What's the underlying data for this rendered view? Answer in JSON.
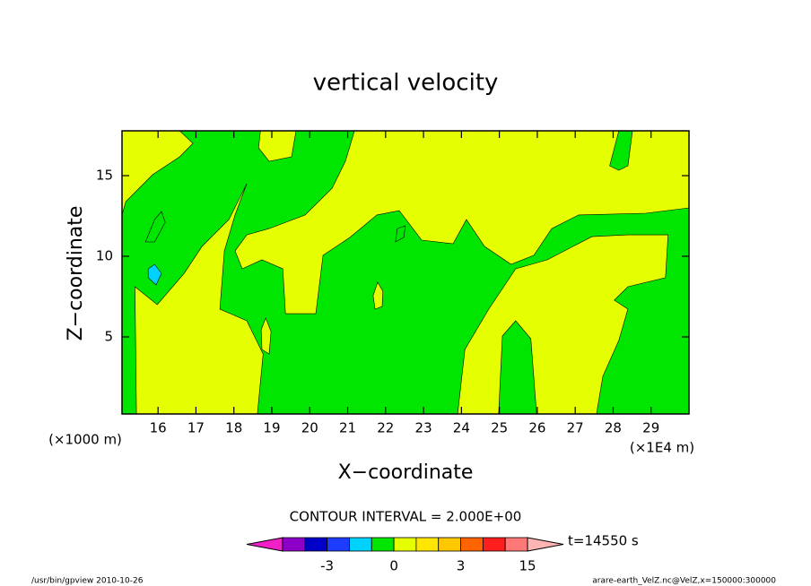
{
  "chart_data": {
    "type": "contour",
    "title": "vertical velocity",
    "x_label": "X−coordinate",
    "y_label": "Z−coordinate",
    "x_unit_left": "(×1000 m)",
    "x_unit_right": "(×1E4 m)",
    "xlim": [
      15.05,
      30
    ],
    "ylim": [
      0.22,
      17.78
    ],
    "xticks": [
      16,
      17,
      18,
      19,
      20,
      21,
      22,
      23,
      24,
      25,
      26,
      27,
      28,
      29
    ],
    "yticks": [
      5,
      10,
      15
    ],
    "contour_note": "CONTOUR INTERVAL = 2.000E+00",
    "time_label": "t=14550 s",
    "footer_left": "/usr/bin/gpview   2010-10-26",
    "footer_right": "arare-earth_VelZ.nc@VelZ,x=150000:300000",
    "levels": [
      -11,
      -7,
      -3,
      -2,
      -1,
      0,
      1,
      2,
      3,
      7,
      11,
      15
    ],
    "colorbar_ticks": [
      -3,
      0,
      3,
      15
    ],
    "colors": [
      "#f020c8",
      "#8c00c8",
      "#0000c8",
      "#1e3cff",
      "#00d2ff",
      "#00e600",
      "#e6ff00",
      "#ffe600",
      "#ffc800",
      "#ff6400",
      "#ff1e1e",
      "#ff7878",
      "#ffb4b4"
    ],
    "background_range": [
      -1,
      0
    ],
    "regions": [
      {
        "range": [
          0,
          1
        ],
        "x": [
          15.05,
          16.57,
          16.92,
          16.57,
          15.86,
          15.15,
          15.05
        ],
        "z": [
          17.78,
          17.78,
          17,
          16.17,
          15.06,
          13.39,
          12.56
        ]
      },
      {
        "range": [
          0,
          1
        ],
        "x": [
          15.43,
          15.39,
          15.98,
          16.69,
          17.16,
          17.87,
          18.34,
          18.03,
          17.75,
          17.63,
          18.34,
          18.77,
          18.62
        ],
        "z": [
          0.22,
          8.11,
          7,
          8.94,
          10.61,
          12.28,
          14.5,
          12.56,
          10.33,
          6.72,
          6,
          3.94,
          0.22
        ]
      },
      {
        "range": [
          0,
          1
        ],
        "x": [
          18.7,
          19.64,
          19.52,
          18.93,
          18.65
        ],
        "z": [
          17.78,
          17.78,
          16.17,
          15.89,
          16.72
        ]
      },
      {
        "range": [
          0,
          1
        ],
        "x": [
          21.18,
          30,
          30,
          28.86,
          27.09,
          26.38,
          25.91,
          25.31,
          24.61,
          24.13,
          23.78,
          22.95,
          22.36,
          21.77,
          21.06,
          20.35,
          20.16,
          19.36,
          19.29,
          18.74,
          18.22,
          18.03,
          18.34,
          18.93,
          19.88,
          20.59,
          20.94
        ],
        "z": [
          17.78,
          17.78,
          13,
          12.67,
          12.56,
          11.72,
          10.06,
          9.5,
          10.61,
          12.28,
          10.78,
          11,
          12.83,
          12.56,
          11.17,
          10.06,
          6.44,
          6.44,
          9.22,
          9.78,
          9.22,
          10.33,
          11.33,
          11.72,
          12.56,
          14.22,
          15.89
        ]
      },
      {
        "range": [
          0,
          1
        ],
        "x": [
          23.9,
          24.09,
          24.72,
          25.43,
          26.26,
          27.44,
          28.39,
          29.45,
          29.38,
          28.39,
          28.03,
          28.39,
          28.15,
          27.73,
          27.56
        ],
        "z": [
          0.22,
          4.22,
          6.72,
          9.22,
          9.78,
          11.22,
          11.33,
          11.33,
          8.67,
          8.11,
          7.28,
          6.72,
          4.78,
          2.56,
          0.22
        ]
      },
      {
        "range": [
          0,
          1
        ],
        "x": [
          21.79,
          21.93,
          21.91,
          21.72,
          21.67
        ],
        "z": [
          8.39,
          7.83,
          6.89,
          6.72,
          7.56
        ]
      },
      {
        "range": [
          0,
          1
        ],
        "x": [
          18.84,
          18.98,
          18.93,
          18.74,
          18.72
        ],
        "z": [
          6.17,
          5.33,
          3.94,
          4.22,
          5.44
        ]
      },
      {
        "range": [
          -1,
          0
        ],
        "x": [
          27.91,
          28.15,
          28.51,
          28.39,
          28.15
        ],
        "z": [
          15.61,
          17.78,
          17.78,
          15.61,
          15.33
        ]
      },
      {
        "range": [
          -1,
          0
        ],
        "x": [
          24.98,
          25.08,
          25.43,
          25.83,
          25.98
        ],
        "z": [
          0.22,
          5.06,
          6,
          4.89,
          0.22
        ]
      },
      {
        "range": [
          -1,
          0
        ],
        "x": [
          22.31,
          22.52,
          22.48,
          22.26
        ],
        "z": [
          11.72,
          11.89,
          11.17,
          10.89
        ]
      },
      {
        "range": [
          -1,
          0
        ],
        "x": [
          15.91,
          16.09,
          16.19,
          15.91,
          15.67
        ],
        "z": [
          12.28,
          12.78,
          12.11,
          10.89,
          10.89
        ]
      },
      {
        "range": [
          -2,
          -1
        ],
        "x": [
          15.74,
          15.91,
          16.09,
          15.95,
          15.74
        ],
        "z": [
          9.22,
          9.5,
          8.94,
          8.22,
          8.67
        ]
      }
    ]
  }
}
